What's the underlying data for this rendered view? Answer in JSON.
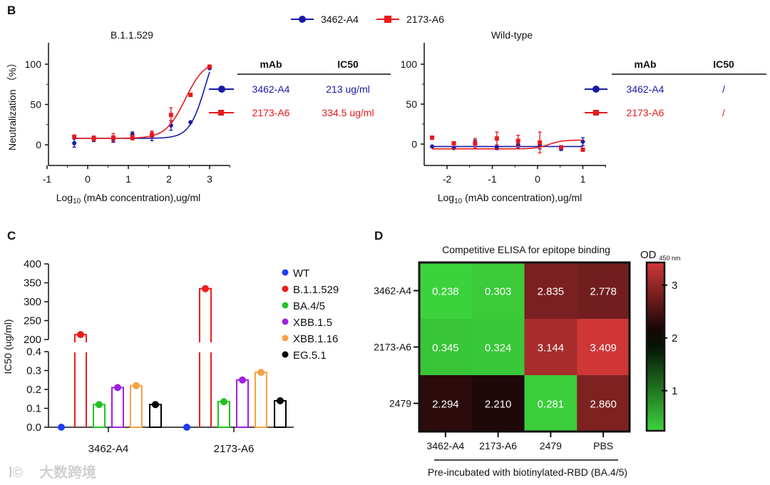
{
  "panels": {
    "B": "B",
    "C": "C",
    "D": "D"
  },
  "watermark": "大数跨境",
  "legend_top": [
    {
      "name": "3462-A4",
      "color": "#1a1aa8",
      "marker": "circle"
    },
    {
      "name": "2173-A6",
      "color": "#e8191c",
      "marker": "square"
    }
  ],
  "chart_data": [
    {
      "id": "B-left",
      "type": "line",
      "title": "B.1.1.529",
      "xlabel": "Log10 (mAb concentration),ug/ml",
      "xlabel_main": "Log",
      "xlabel_sub": "10",
      "xlabel_rest": " (mAb concentration),ug/ml",
      "ylabel": "Neutralization （%）",
      "xlim": [
        -1,
        3.2
      ],
      "ylim": [
        -25,
        125
      ],
      "xticks": [
        -1,
        0,
        1,
        2,
        3
      ],
      "yticks": [
        0,
        50,
        100
      ],
      "series": [
        {
          "name": "3462-A4",
          "color": "#1a1aa8",
          "x": [
            -0.33,
            0.15,
            0.63,
            1.1,
            1.58,
            2.05,
            2.53,
            3.0
          ],
          "y": [
            2,
            7,
            7,
            13,
            11,
            24,
            28,
            95
          ],
          "err": [
            5,
            3,
            4,
            3,
            6,
            6,
            0,
            0
          ],
          "fit": {
            "bottom": 8,
            "top": 140,
            "logEC50": 2.9,
            "hill": 2.2
          }
        },
        {
          "name": "2173-A6",
          "color": "#e8191c",
          "x": [
            -0.33,
            0.15,
            0.63,
            1.1,
            1.58,
            2.05,
            2.53,
            3.0
          ],
          "y": [
            10,
            8,
            9,
            9,
            13,
            37,
            62,
            97
          ],
          "err": [
            2,
            3,
            5,
            3,
            4,
            9,
            2,
            1
          ],
          "fit": {
            "bottom": 8,
            "top": 105,
            "logEC50": 2.4,
            "hill": 1.8
          }
        }
      ],
      "table": {
        "headers": [
          "mAb",
          "IC50"
        ],
        "rows": [
          [
            "3462-A4",
            "213 ug/ml"
          ],
          [
            "2173-A6",
            "334.5 ug/ml"
          ]
        ]
      }
    },
    {
      "id": "B-right",
      "type": "line",
      "title": "Wild-type",
      "xlabel": "Log10 (mAb concentration),ug/ml",
      "xlim": [
        -2.5,
        1.5
      ],
      "ylim": [
        -25,
        125
      ],
      "xticks": [
        -2,
        -1,
        0,
        1
      ],
      "yticks": [
        0,
        50,
        100
      ],
      "series": [
        {
          "name": "3462-A4",
          "color": "#1a1aa8",
          "x": [
            -2.33,
            -1.85,
            -1.38,
            -0.9,
            -0.43,
            0.05,
            0.52,
            1.0
          ],
          "y": [
            -3,
            -5,
            2,
            -4,
            -1,
            -2,
            -6,
            3
          ],
          "err": [
            0,
            1,
            3,
            3,
            4,
            4,
            2,
            5
          ],
          "fit": {
            "bottom": -3,
            "top": -3,
            "logEC50": 0,
            "hill": 1
          }
        },
        {
          "name": "2173-A6",
          "color": "#e8191c",
          "x": [
            -2.33,
            -1.85,
            -1.38,
            -0.9,
            -0.43,
            0.05,
            0.52,
            1.0
          ],
          "y": [
            8,
            1,
            1,
            7,
            4,
            2,
            -4,
            -7
          ],
          "err": [
            2,
            2,
            6,
            8,
            7,
            13,
            2,
            2
          ],
          "fit": {
            "bottom": 5,
            "top": -6,
            "logEC50": 0.25,
            "hill": -3
          }
        }
      ],
      "table": {
        "headers": [
          "mAb",
          "IC50"
        ],
        "rows": [
          [
            "3462-A4",
            "/"
          ],
          [
            "2173-A6",
            "/"
          ]
        ]
      }
    },
    {
      "id": "C",
      "type": "bar",
      "ylabel": "IC50 (ug/ml)",
      "categories": [
        "3462-A4",
        "2173-A6"
      ],
      "ylim_lower": [
        0,
        0.4
      ],
      "ylim_upper": [
        200,
        400
      ],
      "yticks_lower": [
        "0.0",
        "0.1",
        "0.2",
        "0.3",
        "0.4"
      ],
      "yticks_upper": [
        "200",
        "250",
        "300",
        "350",
        "400"
      ],
      "legend": "right",
      "series": [
        {
          "name": "WT",
          "color": "#1f3dfa",
          "values": [
            0,
            0
          ]
        },
        {
          "name": "B.1.1.529",
          "color": "#ee1c1c",
          "values": [
            213,
            334.5
          ]
        },
        {
          "name": "BA.4/5",
          "color": "#22c322",
          "values": [
            0.12,
            0.135
          ]
        },
        {
          "name": "XBB.1.5",
          "color": "#a020e0",
          "values": [
            0.21,
            0.25
          ]
        },
        {
          "name": "XBB.1.16",
          "color": "#f7a145",
          "values": [
            0.22,
            0.29
          ]
        },
        {
          "name": "EG.5.1",
          "color": "#000000",
          "values": [
            0.12,
            0.14
          ]
        }
      ]
    },
    {
      "id": "D",
      "type": "heatmap",
      "title": "Competitive ELISA for epitope binding",
      "rows": [
        "3462-A4",
        "2173-A6",
        "2479"
      ],
      "cols": [
        "3462-A4",
        "2173-A6",
        "2479",
        "PBS"
      ],
      "values": [
        [
          "0.238",
          "0.303",
          "2.835",
          "2.778"
        ],
        [
          "0.345",
          "0.324",
          "3.144",
          "3.409"
        ],
        [
          "2.294",
          "2.210",
          "0.281",
          "2.860"
        ]
      ],
      "xlabel": "Pre-incubated with biotinylated-RBD (BA.4/5)",
      "colorbar_label": "OD",
      "colorbar_sub": "450 nm",
      "colorbar_ticks": [
        "1",
        "2",
        "3"
      ],
      "colorbar_range": [
        0.24,
        3.43
      ],
      "color_low": "#3cd23c",
      "color_mid": "#000000",
      "color_high": "#d23737"
    }
  ]
}
